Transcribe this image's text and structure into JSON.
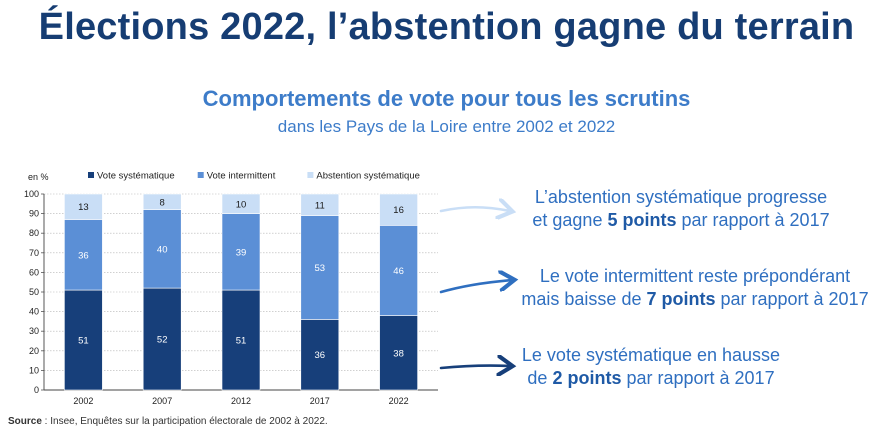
{
  "header": {
    "title": "Élections 2022, l’abstention gagne du terrain",
    "subtitle": "Comportements de vote pour tous les scrutins",
    "subsubtitle": "dans les Pays de la Loire entre 2002 et 2022"
  },
  "chart_data": {
    "type": "bar",
    "stacked": true,
    "unit_label": "en %",
    "categories": [
      "2002",
      "2007",
      "2012",
      "2017",
      "2022"
    ],
    "series": [
      {
        "name": "Vote systématique",
        "values": [
          51,
          52,
          51,
          36,
          38
        ],
        "color": "#173f7a"
      },
      {
        "name": "Vote intermittent",
        "values": [
          36,
          40,
          39,
          53,
          46
        ],
        "color": "#5b8fd6"
      },
      {
        "name": "Abstention systématique",
        "values": [
          13,
          8,
          10,
          11,
          16
        ],
        "color": "#c9def6"
      }
    ],
    "ylim": [
      0,
      100
    ],
    "yticks": [
      0,
      10,
      20,
      30,
      40,
      50,
      60,
      70,
      80,
      90,
      100
    ],
    "grid": true,
    "legend": "top"
  },
  "annotations": [
    {
      "line1": "L’abstention systématique progresse",
      "line2_pre": "et gagne ",
      "line2_bold": "5 points",
      "line2_post": " par rapport à 2017",
      "arrow_color": "#c9def6"
    },
    {
      "line1": "Le vote intermittent reste prépondérant",
      "line2_pre": "mais baisse de ",
      "line2_bold": "7 points",
      "line2_post": " par rapport à 2017",
      "arrow_color": "#2f6fc0"
    },
    {
      "line1": "Le vote systématique en hausse",
      "line2_pre": "de ",
      "line2_bold": "2 points",
      "line2_post": " par rapport à 2017",
      "arrow_color": "#173f7a"
    }
  ],
  "source": {
    "label": "Source",
    "text": " : Insee, Enquêtes sur la participation électorale de 2002 à 2022."
  }
}
